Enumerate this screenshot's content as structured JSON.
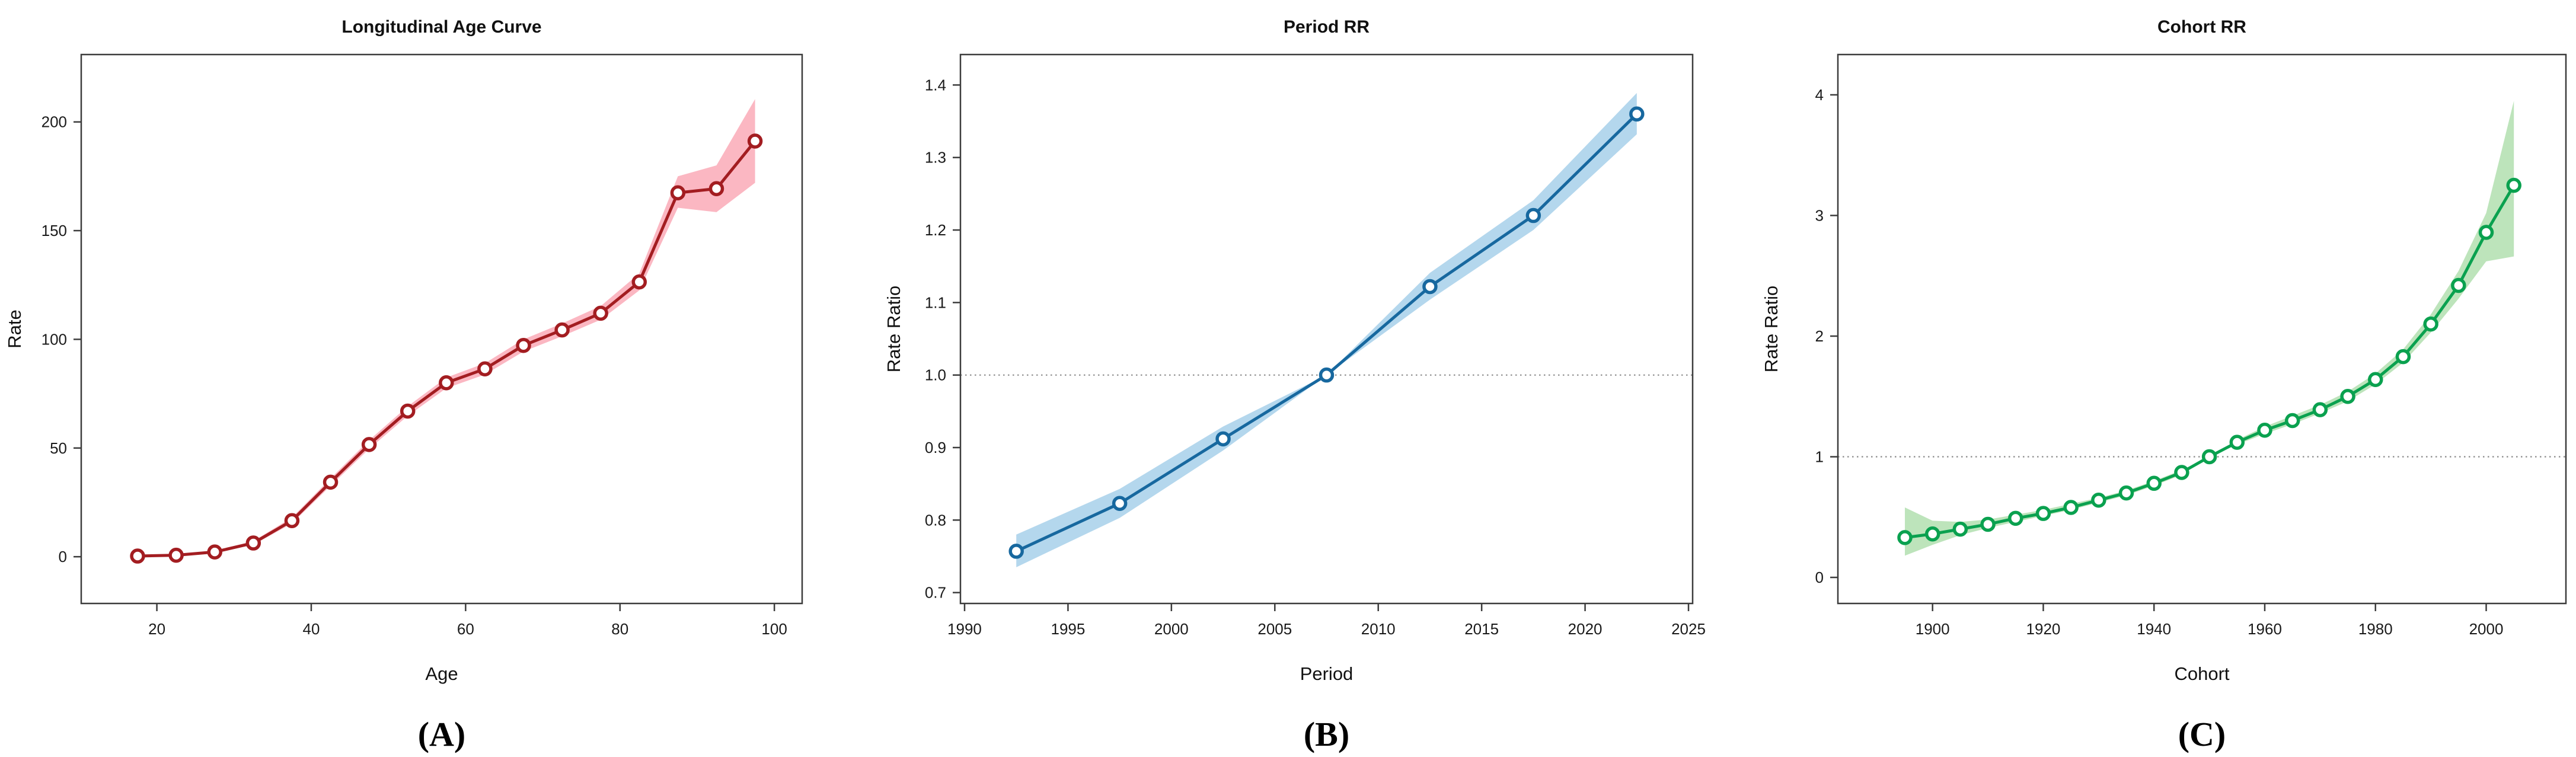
{
  "figure": {
    "description": "Age-Period-Cohort analysis figure with three line panels",
    "background": "#ffffff",
    "reference_line_color": "#8a8a8a",
    "box_color": "#3c3c3c"
  },
  "chart_data": [
    {
      "type": "line",
      "title": "Longitudinal Age Curve",
      "xlabel": "Age",
      "ylabel": "Rate",
      "panel_label": "(A)",
      "legend_position": "none",
      "grid": false,
      "x": [
        17.5,
        22.5,
        27.5,
        32.5,
        37.5,
        42.5,
        47.5,
        52.5,
        57.5,
        62.5,
        67.5,
        72.5,
        77.5,
        82.5,
        87.5,
        92.5,
        97.5
      ],
      "y": [
        0.3,
        0.7,
        2.2,
        6.3,
        16.6,
        34.3,
        51.6,
        67.0,
        80.0,
        86.4,
        97.2,
        104.3,
        112.0,
        126.4,
        167.4,
        169.3,
        191.2
      ],
      "band_lower": [
        0.1,
        0.4,
        1.8,
        5.5,
        15.3,
        32.6,
        49.6,
        64.8,
        77.5,
        83.8,
        94.4,
        101.4,
        109.0,
        122.5,
        160.5,
        158.5,
        172.0
      ],
      "band_upper": [
        0.6,
        1.2,
        2.8,
        7.2,
        18.0,
        36.0,
        53.6,
        69.2,
        82.4,
        89.0,
        100.0,
        107.3,
        115.3,
        130.3,
        175.0,
        180.0,
        210.5
      ],
      "ref_line_y": null,
      "xlim": [
        10.2,
        103.6
      ],
      "ylim": [
        -21.5,
        231.0
      ],
      "xticks": {
        "values": [
          20,
          40,
          60,
          80,
          100
        ],
        "labels": [
          "20",
          "40",
          "60",
          "80",
          "100"
        ]
      },
      "yticks": {
        "values": [
          0,
          50,
          100,
          150,
          200
        ],
        "labels": [
          "0",
          "50",
          "100",
          "150",
          "200"
        ]
      },
      "line_color": "#a31d21",
      "band_color": "#fbb7c2",
      "marker": "open-circle"
    },
    {
      "type": "line",
      "title": "Period RR",
      "xlabel": "Period",
      "ylabel": "Rate Ratio",
      "panel_label": "(B)",
      "legend_position": "none",
      "grid": false,
      "x": [
        1992.5,
        1997.5,
        2002.5,
        2007.5,
        2012.5,
        2017.5,
        2022.5
      ],
      "y": [
        0.757,
        0.823,
        0.912,
        1.0,
        1.122,
        1.22,
        1.36
      ],
      "band_lower": [
        0.735,
        0.803,
        0.896,
        1.0,
        1.104,
        1.2,
        1.332
      ],
      "band_upper": [
        0.78,
        0.843,
        0.929,
        1.0,
        1.141,
        1.241,
        1.389
      ],
      "ref_line_y": 1.0,
      "xlim": [
        1989.8,
        2025.2
      ],
      "ylim": [
        0.685,
        1.442
      ],
      "xticks": {
        "values": [
          1990,
          1995,
          2000,
          2005,
          2010,
          2015,
          2020,
          2025
        ],
        "labels": [
          "1990",
          "1995",
          "2000",
          "2005",
          "2010",
          "2015",
          "2020",
          "2025"
        ]
      },
      "yticks": {
        "values": [
          0.7,
          0.8,
          0.9,
          1.0,
          1.1,
          1.2,
          1.3,
          1.4
        ],
        "labels": [
          "0.7",
          "0.8",
          "0.9",
          "1.0",
          "1.1",
          "1.2",
          "1.3",
          "1.4"
        ]
      },
      "line_color": "#17689f",
      "band_color": "#b4d7ed",
      "marker": "open-circle"
    },
    {
      "type": "line",
      "title": "Cohort RR",
      "xlabel": "Cohort",
      "ylabel": "Rate Ratio",
      "panel_label": "(C)",
      "legend_position": "none",
      "grid": false,
      "x": [
        1895,
        1900,
        1905,
        1910,
        1915,
        1920,
        1925,
        1930,
        1935,
        1940,
        1945,
        1950,
        1955,
        1960,
        1965,
        1970,
        1975,
        1980,
        1985,
        1990,
        1995,
        2000,
        2005
      ],
      "y": [
        0.33,
        0.36,
        0.4,
        0.44,
        0.49,
        0.53,
        0.58,
        0.64,
        0.7,
        0.78,
        0.87,
        1.0,
        1.12,
        1.22,
        1.3,
        1.39,
        1.5,
        1.64,
        1.83,
        2.1,
        2.42,
        2.86,
        3.25
      ],
      "band_lower": [
        0.18,
        0.27,
        0.35,
        0.41,
        0.46,
        0.51,
        0.56,
        0.62,
        0.68,
        0.76,
        0.85,
        1.0,
        1.1,
        1.19,
        1.27,
        1.36,
        1.46,
        1.6,
        1.78,
        2.03,
        2.31,
        2.62,
        2.66
      ],
      "band_upper": [
        0.58,
        0.47,
        0.46,
        0.48,
        0.52,
        0.56,
        0.61,
        0.66,
        0.72,
        0.8,
        0.89,
        1.0,
        1.14,
        1.25,
        1.34,
        1.43,
        1.54,
        1.69,
        1.89,
        2.18,
        2.54,
        3.02,
        3.95
      ],
      "ref_line_y": 1.0,
      "xlim": [
        1882.9,
        2014.4
      ],
      "ylim": [
        -0.216,
        4.334
      ],
      "xticks": {
        "values": [
          1900,
          1920,
          1940,
          1960,
          1980,
          2000
        ],
        "labels": [
          "1900",
          "1920",
          "1940",
          "1960",
          "1980",
          "2000"
        ]
      },
      "yticks": {
        "values": [
          0,
          1,
          2,
          3,
          4
        ],
        "labels": [
          "0",
          "1",
          "2",
          "3",
          "4"
        ]
      },
      "line_color": "#0aa14f",
      "band_color": "#bde4bb",
      "marker": "open-circle"
    }
  ]
}
